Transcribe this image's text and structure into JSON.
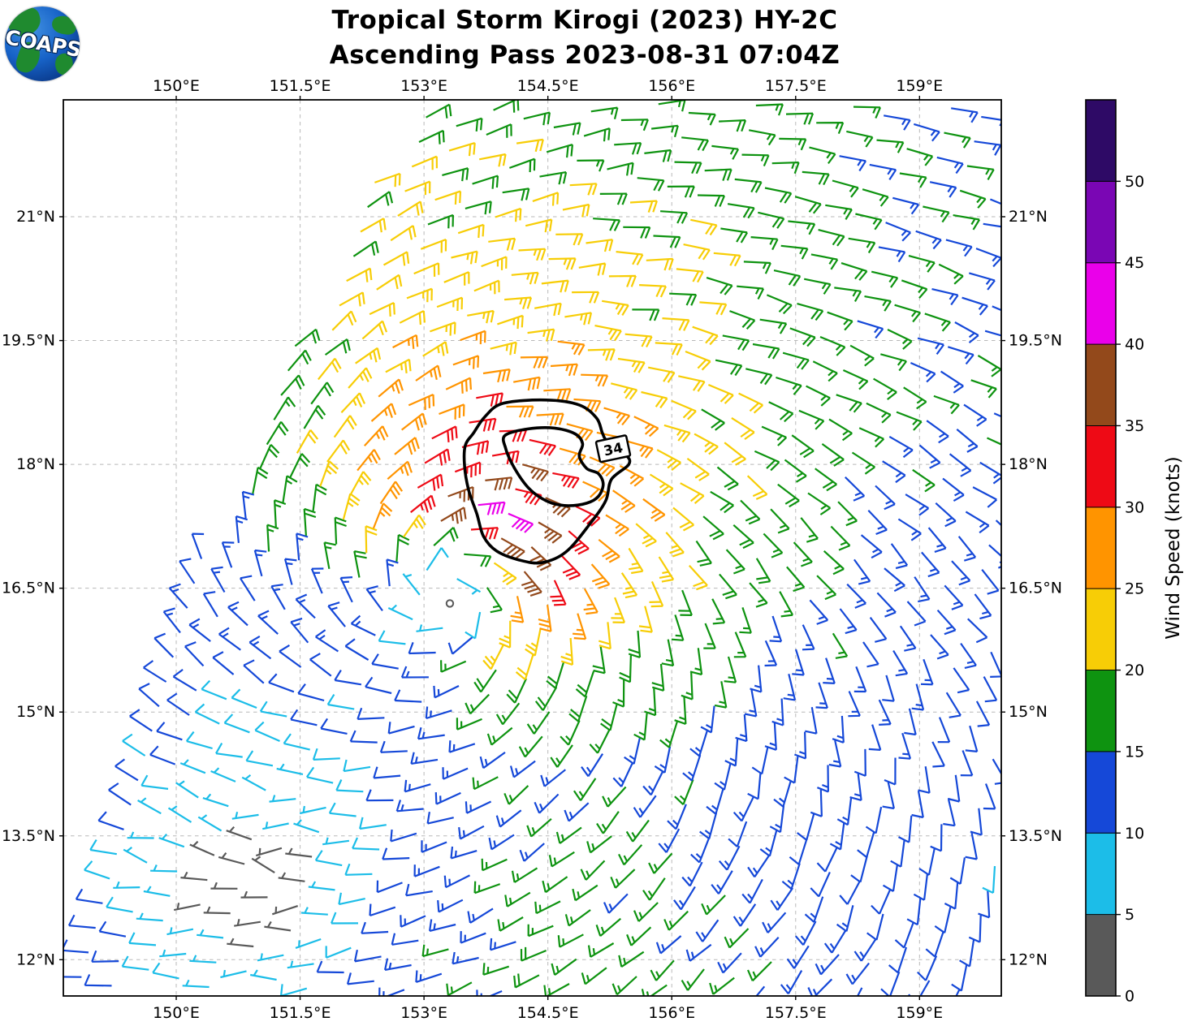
{
  "header": {
    "title_line1": "Tropical Storm Kirogi (2023) HY-2C",
    "title_line2": "Ascending Pass 2023-08-31 07:04Z",
    "logo_text": "COAPS"
  },
  "map": {
    "extent": {
      "lon_min": 148.633,
      "lon_max": 159.99,
      "lat_min": 11.56,
      "lat_max": 22.416
    },
    "lon_ticks": [
      {
        "value": 150,
        "label": "150°E"
      },
      {
        "value": 151.5,
        "label": "151.5°E"
      },
      {
        "value": 153,
        "label": "153°E"
      },
      {
        "value": 154.5,
        "label": "154.5°E"
      },
      {
        "value": 156,
        "label": "156°E"
      },
      {
        "value": 157.5,
        "label": "157.5°E"
      },
      {
        "value": 159,
        "label": "159°E"
      }
    ],
    "lat_ticks": [
      {
        "value": 21,
        "label": "21°N"
      },
      {
        "value": 19.5,
        "label": "19.5°N"
      },
      {
        "value": 18,
        "label": "18°N"
      },
      {
        "value": 16.5,
        "label": "16.5°N"
      },
      {
        "value": 15,
        "label": "15°N"
      },
      {
        "value": 13.5,
        "label": "13.5°N"
      },
      {
        "value": 12,
        "label": "12°N"
      }
    ],
    "grid_color": "#b8b8b8"
  },
  "colorbar": {
    "label": "Wind Speed (knots)",
    "tick_values": [
      0,
      5,
      10,
      15,
      20,
      25,
      30,
      35,
      40,
      45,
      50
    ],
    "n_segments": 11,
    "colors": [
      "#595959",
      "#1CBDE8",
      "#1548D8",
      "#0E9310",
      "#F7CD06",
      "#FF9400",
      "#EE0A15",
      "#93491B",
      "#EA00EA",
      "#7A06B4",
      "#2E0A66"
    ]
  },
  "chart_data": {
    "type": "wind_barb_map",
    "title": "Tropical Storm Kirogi (2023) HY-2C — Ascending Pass 2023-08-31 07:04Z",
    "storm_name": "Kirogi",
    "year": "2023",
    "satellite": "HY-2C",
    "pass_type": "Ascending",
    "datetime_utc": "2023-08-31 07:04Z",
    "units": "knots",
    "speed_levels_kt": [
      0,
      5,
      10,
      15,
      20,
      25,
      30,
      35,
      40,
      45,
      50
    ],
    "wind_radii_label": "34",
    "wind_radii_label_pos": {
      "lon": 155.29,
      "lat": 18.19,
      "rotation_deg": -12
    },
    "contours_34kt": {
      "outer": [
        [
          153.74,
          18.58
        ],
        [
          153.96,
          18.74
        ],
        [
          154.48,
          18.78
        ],
        [
          154.88,
          18.72
        ],
        [
          155.09,
          18.56
        ],
        [
          155.16,
          18.38
        ],
        [
          155.22,
          18.28
        ],
        [
          155.44,
          18.12
        ],
        [
          155.48,
          18.0
        ],
        [
          155.27,
          17.82
        ],
        [
          155.2,
          17.56
        ],
        [
          155.01,
          17.28
        ],
        [
          154.72,
          16.94
        ],
        [
          154.43,
          16.81
        ],
        [
          154.16,
          16.84
        ],
        [
          153.88,
          16.95
        ],
        [
          153.72,
          17.13
        ],
        [
          153.64,
          17.4
        ],
        [
          153.54,
          17.69
        ],
        [
          153.49,
          17.99
        ],
        [
          153.5,
          18.23
        ],
        [
          153.6,
          18.38
        ]
      ],
      "inner": [
        [
          153.98,
          18.35
        ],
        [
          154.26,
          18.43
        ],
        [
          154.58,
          18.44
        ],
        [
          154.83,
          18.37
        ],
        [
          154.92,
          18.25
        ],
        [
          154.88,
          18.1
        ],
        [
          154.97,
          17.95
        ],
        [
          155.11,
          17.89
        ],
        [
          155.17,
          17.76
        ],
        [
          155.11,
          17.61
        ],
        [
          154.97,
          17.53
        ],
        [
          154.75,
          17.5
        ],
        [
          154.55,
          17.53
        ],
        [
          154.39,
          17.61
        ],
        [
          154.26,
          17.72
        ],
        [
          154.16,
          17.85
        ],
        [
          154.06,
          18.02
        ],
        [
          153.99,
          18.19
        ]
      ]
    },
    "swath_edge": {
      "ref_lat": 12,
      "base_lon": 148.7,
      "lin": 0.2543,
      "quad": 0.01373
    },
    "barb_grid": {
      "anchor_lon": 154.3,
      "anchor_lat": 17.0,
      "along_step_deg": 0.31,
      "cross_step_deg": 0.38,
      "tilt_deg": 16
    },
    "wind_model": {
      "center_lon": 153.3,
      "center_lat": 16.5,
      "radius_max_wind_deg": 0.95,
      "max_wind_kt": 26,
      "inner_exp": 1.2,
      "outer_exp": 0.42,
      "asym_amp": 0.62,
      "asym_dir_deg": 55,
      "asym_decay_deg": 3.8,
      "inflow_deg": 18,
      "bg_ne": [
        -5.5,
        -2.5
      ],
      "bg_sw": [
        5.5,
        2.0
      ],
      "bg_line": {
        "lon0": 154.8,
        "lat0": 15.2,
        "cl": 0.5,
        "ct": 0.87,
        "width": 1.4
      },
      "calm_zone": {
        "lon": 150.9,
        "lat": 12.9,
        "sigma_deg": 1.35,
        "depth": 0.82
      }
    }
  }
}
